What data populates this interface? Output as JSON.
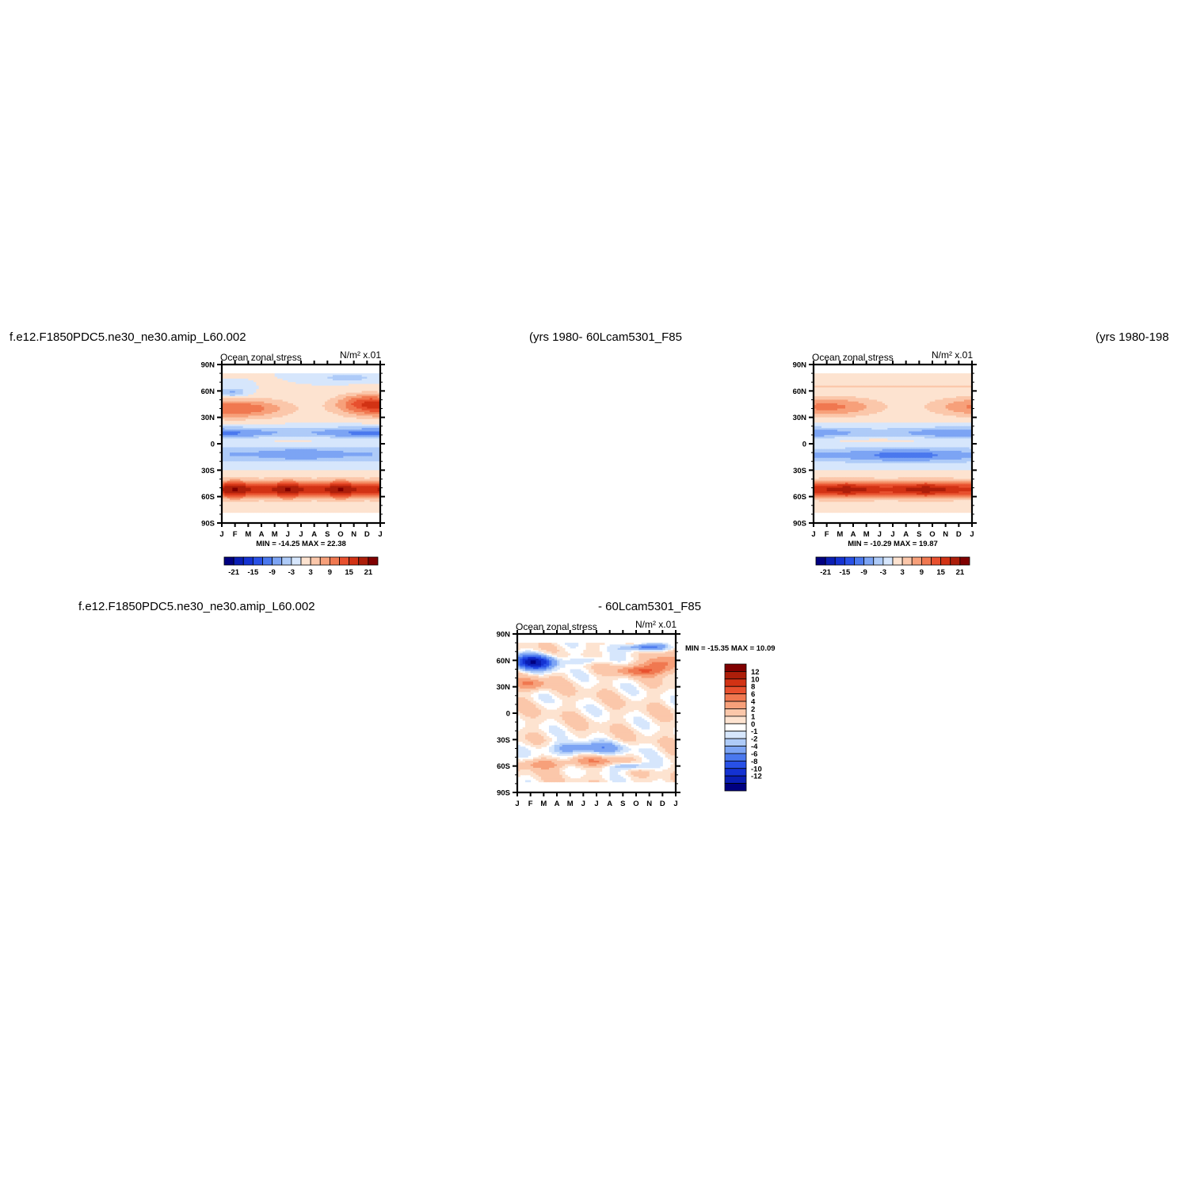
{
  "figure": {
    "top_case_title": "f.e12.F1850PDC5.ne30_ne30.amip_L60.002",
    "top_years_left": "(yrs  1980-",
    "top_control_title": "60Lcam5301_F85",
    "top_years_right": "(yrs  1980-198",
    "diff_case_title": "f.e12.F1850PDC5.ne30_ne30.amip_L60.002",
    "diff_control_title": "-  60Lcam5301_F85"
  },
  "colors": {
    "diff_levels": [
      "#000080",
      "#0a1eb4",
      "#1432d2",
      "#2850e6",
      "#4a78ee",
      "#7ca4f4",
      "#aecbf8",
      "#d6e6fc",
      "#ffffff",
      "#fde3d0",
      "#fbc7aa",
      "#f7a07a",
      "#f07850",
      "#e8502e",
      "#d23214",
      "#ad1e0a",
      "#800000"
    ],
    "field_levels": [
      "#000080",
      "#0a1eb4",
      "#1432d2",
      "#2850e6",
      "#4a78ee",
      "#7ca4f4",
      "#aecbf8",
      "#d6e6fc",
      "#fde3d0",
      "#fbc7aa",
      "#f7a07a",
      "#f07850",
      "#e8502e",
      "#d23214",
      "#ad1e0a",
      "#800000"
    ]
  },
  "chart_data": [
    {
      "type": "heatmap",
      "id": "test-case",
      "title": "Ocean  zonal  stress",
      "units": "N/m² x.01",
      "x_ticks": [
        "J",
        "F",
        "M",
        "A",
        "M",
        "J",
        "J",
        "A",
        "S",
        "O",
        "N",
        "D",
        "J"
      ],
      "y_ticks": [
        "90N",
        "60N",
        "30N",
        "0",
        "30S",
        "60S",
        "90S"
      ],
      "min_max": "MIN =  -14.25  MAX =    22.38",
      "colorbar_labels": [
        "-21",
        "-15",
        "-9",
        "-3",
        "3",
        "9",
        "15",
        "21"
      ],
      "levels": [
        -21,
        -18,
        -15,
        -12,
        -9,
        -6,
        -3,
        0,
        3,
        6,
        9,
        12,
        15,
        18,
        21
      ],
      "min": -14.25,
      "max": 22.38
    },
    {
      "type": "heatmap",
      "id": "control-case",
      "title": "Ocean  zonal  stress",
      "units": "N/m² x.01",
      "x_ticks": [
        "J",
        "F",
        "M",
        "A",
        "M",
        "J",
        "J",
        "A",
        "S",
        "O",
        "N",
        "D",
        "J"
      ],
      "y_ticks": [
        "90N",
        "60N",
        "30N",
        "0",
        "30S",
        "60S",
        "90S"
      ],
      "min_max": "MIN =  -10.29  MAX =    19.87",
      "colorbar_labels": [
        "-21",
        "-15",
        "-9",
        "-3",
        "3",
        "9",
        "15",
        "21"
      ],
      "levels": [
        -21,
        -18,
        -15,
        -12,
        -9,
        -6,
        -3,
        0,
        3,
        6,
        9,
        12,
        15,
        18,
        21
      ],
      "min": -10.29,
      "max": 19.87
    },
    {
      "type": "heatmap",
      "id": "difference",
      "title": "Ocean  zonal  stress",
      "units": "N/m² x.01",
      "x_ticks": [
        "J",
        "F",
        "M",
        "A",
        "M",
        "J",
        "J",
        "A",
        "S",
        "O",
        "N",
        "D",
        "J"
      ],
      "y_ticks": [
        "90N",
        "60N",
        "30N",
        "0",
        "30S",
        "60S",
        "90S"
      ],
      "min_max": "MIN =  -15.35  MAX =    10.09",
      "colorbar_labels": [
        "12",
        "10",
        "8",
        "6",
        "4",
        "2",
        "1",
        "0",
        "-1",
        "-2",
        "-4",
        "-6",
        "-8",
        "-10",
        "-12"
      ],
      "levels": [
        -12,
        -10,
        -8,
        -6,
        -4,
        -2,
        -1,
        0,
        1,
        2,
        4,
        6,
        8,
        10,
        12
      ],
      "min": -15.35,
      "max": 10.09
    }
  ]
}
